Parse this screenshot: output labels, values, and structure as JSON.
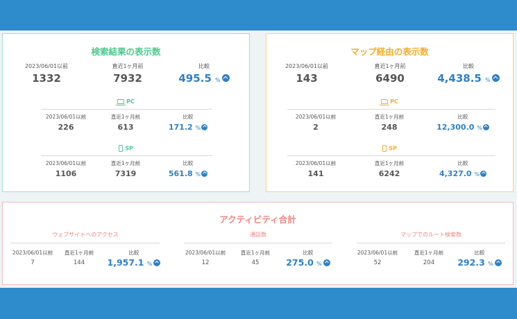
{
  "search_card": {
    "title": "検索結果の表示数",
    "total": {
      "before_label": "2023/06/01以前",
      "before_value": "1332",
      "recent_label": "直近1ヶ月前",
      "recent_value": "7932",
      "ratio_label": "比較",
      "ratio_value": "495.5",
      "ratio_unit": "%"
    },
    "pc": {
      "label": "PC",
      "before_label": "2023/06/01以前",
      "before_value": "226",
      "recent_label": "直近1ヶ月前",
      "recent_value": "613",
      "ratio_label": "比較",
      "ratio_value": "171.2",
      "ratio_unit": "%"
    },
    "sp": {
      "label": "SP",
      "before_label": "2023/06/01以前",
      "before_value": "1106",
      "recent_label": "直近1ヶ月前",
      "recent_value": "7319",
      "ratio_label": "比較",
      "ratio_value": "561.8",
      "ratio_unit": "%"
    }
  },
  "map_card": {
    "title": "マップ経由の表示数",
    "total": {
      "before_label": "2023/06/01以前",
      "before_value": "143",
      "recent_label": "直近1ヶ月前",
      "recent_value": "6490",
      "ratio_label": "比較",
      "ratio_value": "4,438.5",
      "ratio_unit": "%"
    },
    "pc": {
      "label": "PC",
      "before_label": "2023/06/01以前",
      "before_value": "2",
      "recent_label": "直近1ヶ月前",
      "recent_value": "248",
      "ratio_label": "比較",
      "ratio_value": "12,300.0",
      "ratio_unit": "%"
    },
    "sp": {
      "label": "SP",
      "before_label": "2023/06/01以前",
      "before_value": "141",
      "recent_label": "直近1ヶ月前",
      "recent_value": "6242",
      "ratio_label": "比較",
      "ratio_value": "4,327.0",
      "ratio_unit": "%"
    }
  },
  "activity_card": {
    "title": "アクティビティ合計",
    "website": {
      "label": "ウェブサイトへのアクセス",
      "before_label": "2023/06/01以前",
      "before_value": "7",
      "recent_label": "直近1ヶ月前",
      "recent_value": "144",
      "ratio_label": "比較",
      "ratio_value": "1,957.1",
      "ratio_unit": "%"
    },
    "calls": {
      "label": "通話数",
      "before_label": "2023/06/01以前",
      "before_value": "12",
      "recent_label": "直近1ヶ月前",
      "recent_value": "45",
      "ratio_label": "比較",
      "ratio_value": "275.0",
      "ratio_unit": "%"
    },
    "routes": {
      "label": "マップでのルート検索数",
      "before_label": "2023/06/01以前",
      "before_value": "52",
      "recent_label": "直近1ヶ月前",
      "recent_value": "204",
      "ratio_label": "比較",
      "ratio_value": "292.3",
      "ratio_unit": "%"
    }
  },
  "icons": {
    "up": "arrow-up-circle-icon",
    "pc": "laptop-icon",
    "sp": "smartphone-icon"
  },
  "colors": {
    "header": "#2e8bcc",
    "search_accent": "#4ec98e",
    "map_accent": "#f2ae2c",
    "activity_accent": "#f08585",
    "ratio": "#2f7fc1"
  }
}
